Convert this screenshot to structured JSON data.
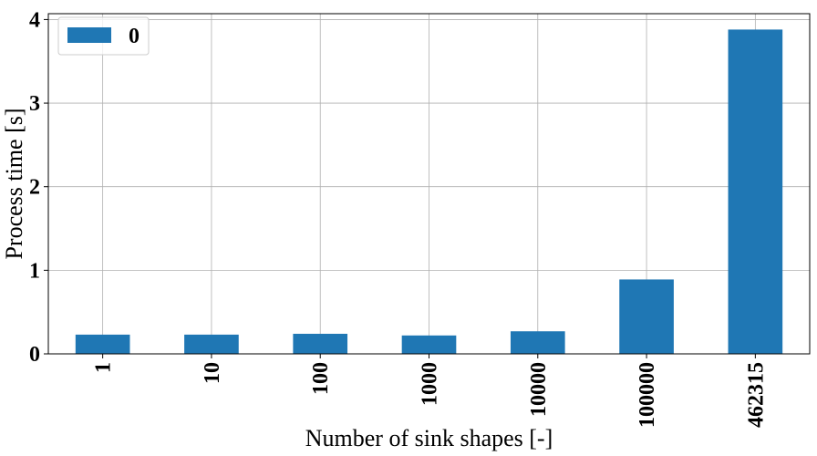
{
  "chart_data": {
    "type": "bar",
    "categories": [
      "1",
      "10",
      "100",
      "1000",
      "10000",
      "100000",
      "462315"
    ],
    "series": [
      {
        "name": "0",
        "values": [
          0.23,
          0.23,
          0.24,
          0.22,
          0.27,
          0.89,
          3.88
        ]
      }
    ],
    "xlabel": "Number of sink shapes [-]",
    "ylabel": "Process time [s]",
    "ylim": [
      0,
      4.07
    ],
    "yticks": [
      "0",
      "1",
      "2",
      "3",
      "4"
    ],
    "grid": true,
    "legend": "top-left",
    "bar_color": "#1f77b4"
  }
}
